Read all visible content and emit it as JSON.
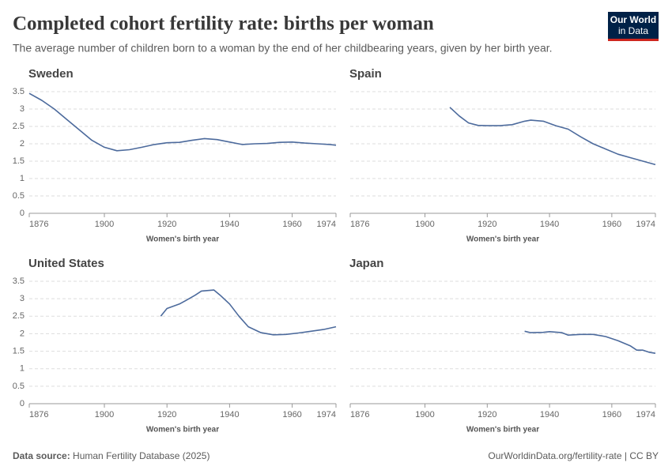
{
  "header": {
    "title": "Completed cohort fertility rate: births per woman",
    "subtitle": "The average number of children born to a woman by the end of her childbearing years, given by her birth year.",
    "logo": [
      "Our World",
      "in Data"
    ]
  },
  "chart_data": [
    {
      "type": "line",
      "title": "Sweden",
      "xlabel": "Women's birth year",
      "color": "#4c6a9c",
      "x": [
        1876,
        1880,
        1884,
        1888,
        1892,
        1896,
        1900,
        1904,
        1908,
        1912,
        1916,
        1920,
        1924,
        1928,
        1932,
        1936,
        1940,
        1944,
        1948,
        1952,
        1956,
        1960,
        1964,
        1968,
        1972,
        1974
      ],
      "values": [
        3.45,
        3.25,
        3.0,
        2.7,
        2.4,
        2.1,
        1.9,
        1.8,
        1.83,
        1.9,
        1.98,
        2.03,
        2.04,
        2.1,
        2.15,
        2.12,
        2.05,
        1.98,
        2.0,
        2.01,
        2.04,
        2.05,
        2.02,
        2.0,
        1.98,
        1.96
      ],
      "xlim": [
        1876,
        1974
      ],
      "xticks": [
        1876,
        1900,
        1920,
        1940,
        1960,
        1974
      ],
      "ylim": [
        0,
        3.5
      ],
      "yticks": [
        0,
        0.5,
        1,
        1.5,
        2,
        2.5,
        3,
        3.5
      ],
      "ytick_labels": true,
      "grid": true
    },
    {
      "type": "line",
      "title": "Spain",
      "xlabel": "Women's birth year",
      "color": "#4c6a9c",
      "x": [
        1908,
        1911,
        1914,
        1917,
        1920,
        1924,
        1928,
        1932,
        1934,
        1938,
        1942,
        1946,
        1950,
        1954,
        1958,
        1962,
        1966,
        1970,
        1974
      ],
      "values": [
        3.05,
        2.8,
        2.6,
        2.53,
        2.52,
        2.52,
        2.55,
        2.65,
        2.68,
        2.65,
        2.52,
        2.42,
        2.2,
        2.0,
        1.85,
        1.7,
        1.6,
        1.5,
        1.4
      ],
      "xlim": [
        1876,
        1974
      ],
      "xticks": [
        1876,
        1900,
        1920,
        1940,
        1960,
        1974
      ],
      "ylim": [
        0,
        3.5
      ],
      "yticks": [
        0,
        0.5,
        1,
        1.5,
        2,
        2.5,
        3,
        3.5
      ],
      "ytick_labels": false,
      "grid": true
    },
    {
      "type": "line",
      "title": "United States",
      "xlabel": "Women's birth year",
      "color": "#4c6a9c",
      "x": [
        1918,
        1920,
        1924,
        1926,
        1929,
        1931,
        1935,
        1937,
        1940,
        1943,
        1946,
        1950,
        1954,
        1958,
        1962,
        1966,
        1970,
        1974
      ],
      "values": [
        2.5,
        2.72,
        2.85,
        2.95,
        3.1,
        3.22,
        3.25,
        3.1,
        2.85,
        2.5,
        2.2,
        2.03,
        1.97,
        1.98,
        2.02,
        2.07,
        2.12,
        2.2
      ],
      "xlim": [
        1876,
        1974
      ],
      "xticks": [
        1876,
        1900,
        1920,
        1940,
        1960,
        1974
      ],
      "ylim": [
        0,
        3.5
      ],
      "yticks": [
        0,
        0.5,
        1,
        1.5,
        2,
        2.5,
        3,
        3.5
      ],
      "ytick_labels": true,
      "grid": true
    },
    {
      "type": "line",
      "title": "Japan",
      "xlabel": "Women's birth year",
      "color": "#4c6a9c",
      "x": [
        1932,
        1934,
        1938,
        1940,
        1944,
        1946,
        1950,
        1954,
        1958,
        1962,
        1966,
        1968,
        1970,
        1972,
        1974
      ],
      "values": [
        2.07,
        2.03,
        2.04,
        2.06,
        2.03,
        1.96,
        1.98,
        1.98,
        1.92,
        1.8,
        1.65,
        1.53,
        1.53,
        1.47,
        1.44
      ],
      "xlim": [
        1876,
        1974
      ],
      "xticks": [
        1876,
        1900,
        1920,
        1940,
        1960,
        1974
      ],
      "ylim": [
        0,
        3.5
      ],
      "yticks": [
        0,
        0.5,
        1,
        1.5,
        2,
        2.5,
        3,
        3.5
      ],
      "ytick_labels": false,
      "grid": true
    }
  ],
  "footer": {
    "source_label": "Data source:",
    "source": "Human Fertility Database (2025)",
    "url": "OurWorldinData.org/fertility-rate | CC BY"
  }
}
